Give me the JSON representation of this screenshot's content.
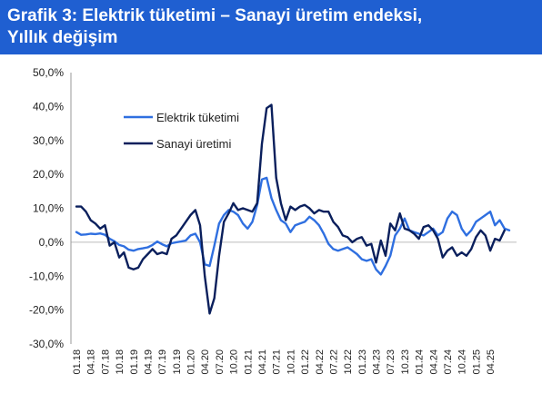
{
  "header": {
    "title": "Grafik 3: Elektrik tüketimi – Sanayi üretim endeksi,\nYıllık değişim"
  },
  "chart_data": {
    "type": "line",
    "title": "Grafik 3: Elektrik tüketimi – Sanayi üretim endeksi, Yıllık değişim",
    "xlabel": "",
    "ylabel": "",
    "ylim": [
      -30,
      50
    ],
    "yticks": [
      "50,0%",
      "40,0%",
      "30,0%",
      "20,0%",
      "10,0%",
      "0,0%",
      "-10,0%",
      "-20,0%",
      "-30,0%"
    ],
    "xticks": [
      "01.18",
      "04.18",
      "07.18",
      "10.18",
      "01.19",
      "04.19",
      "07.19",
      "10.19",
      "01.20",
      "04.20",
      "07.20",
      "10.20",
      "01.21",
      "04.21",
      "07.21",
      "10.21",
      "01.22",
      "04.22",
      "07.22",
      "10.22",
      "01.23",
      "04.23",
      "07.23",
      "10.23",
      "01.24",
      "04.24",
      "07.24",
      "10.24",
      "01.25",
      "04.25"
    ],
    "x_start": "01.18",
    "grid": false,
    "legend": "upper-left inside",
    "series": [
      {
        "name": "Elektrik tüketimi",
        "color": "#2f6fe0",
        "values": [
          3.0,
          2.2,
          2.3,
          2.5,
          2.4,
          2.6,
          2.2,
          1.0,
          0.3,
          -0.8,
          -1.2,
          -2.2,
          -2.5,
          -2.0,
          -1.8,
          -1.5,
          -0.8,
          0.2,
          -0.6,
          -1.2,
          -0.3,
          0.0,
          0.2,
          0.5,
          2.0,
          2.5,
          0.0,
          -6.5,
          -7.0,
          -1.0,
          5.5,
          8.0,
          9.5,
          9.0,
          8.0,
          5.5,
          4.0,
          6.0,
          11.0,
          18.5,
          19.0,
          13.0,
          9.5,
          6.5,
          5.5,
          3.0,
          5.0,
          5.5,
          6.0,
          7.5,
          6.5,
          5.0,
          2.5,
          -0.5,
          -2.0,
          -2.5,
          -2.0,
          -1.5,
          -2.5,
          -3.5,
          -5.0,
          -5.5,
          -5.0,
          -8.0,
          -9.5,
          -7.0,
          -4.0,
          2.0,
          4.0,
          7.0,
          3.5,
          3.0,
          2.5,
          2.0,
          3.0,
          4.0,
          2.0,
          3.0,
          7.0,
          9.0,
          8.0,
          4.0,
          2.0,
          3.5,
          6.0,
          7.0,
          8.0,
          9.0,
          5.0,
          6.5,
          4.0,
          3.5
        ]
      },
      {
        "name": "Sanayi üretimi",
        "color": "#0a1f5c",
        "values": [
          10.5,
          10.5,
          9.0,
          6.5,
          5.5,
          4.0,
          5.0,
          -1.0,
          0.0,
          -4.5,
          -3.0,
          -7.5,
          -8.0,
          -7.5,
          -5.0,
          -3.5,
          -2.0,
          -3.5,
          -3.0,
          -3.5,
          1.0,
          2.0,
          4.0,
          6.0,
          8.0,
          9.5,
          5.0,
          -10.0,
          -21.0,
          -16.5,
          -4.0,
          6.0,
          8.5,
          11.5,
          9.5,
          10.0,
          9.5,
          9.0,
          11.5,
          29.0,
          39.5,
          40.5,
          19.0,
          11.5,
          6.5,
          10.5,
          9.5,
          10.5,
          11.0,
          10.0,
          8.5,
          9.5,
          9.0,
          9.0,
          6.0,
          4.5,
          2.0,
          1.5,
          0.0,
          1.0,
          1.5,
          -1.0,
          -0.5,
          -6.0,
          0.5,
          -4.0,
          5.5,
          3.5,
          8.5,
          4.0,
          3.5,
          2.5,
          1.0,
          4.5,
          5.0,
          3.5,
          1.0,
          -4.5,
          -2.5,
          -1.5,
          -4.0,
          -3.0,
          -4.0,
          -2.0,
          1.5,
          3.5,
          2.0,
          -2.5,
          1.0,
          0.5,
          3.5
        ]
      }
    ]
  }
}
